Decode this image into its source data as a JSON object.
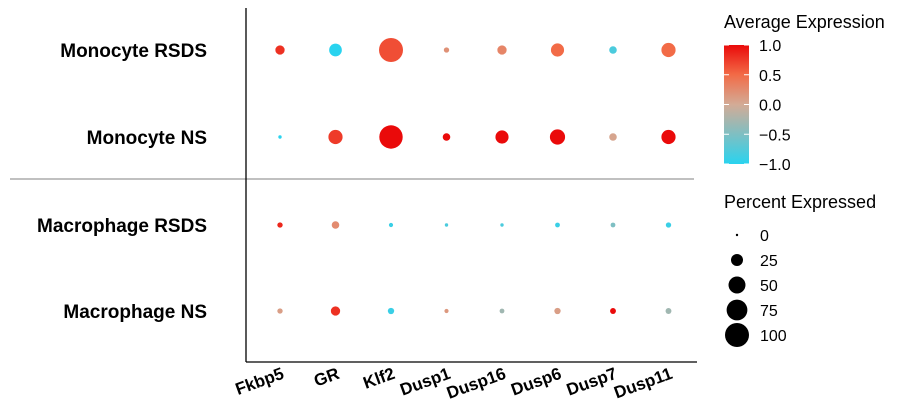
{
  "chart_data": {
    "type": "dotplot",
    "rows": [
      "Monocyte RSDS",
      "Monocyte NS",
      "Macrophage RSDS",
      "Macrophage NS"
    ],
    "columns": [
      "Fkbp5",
      "GR",
      "Klf2",
      "Dusp1",
      "Dusp16",
      "Dusp6",
      "Dusp7",
      "Dusp11"
    ],
    "average_expression": [
      [
        0.8,
        -1.0,
        0.65,
        0.2,
        0.3,
        0.5,
        -0.8,
        0.5
      ],
      [
        -1.0,
        0.75,
        1.0,
        1.0,
        1.0,
        1.0,
        0.05,
        1.0
      ],
      [
        0.85,
        0.25,
        -0.9,
        -0.8,
        -0.8,
        -0.9,
        -0.5,
        -0.9
      ],
      [
        0.1,
        0.8,
        -0.9,
        0.15,
        -0.3,
        0.1,
        1.0,
        -0.3
      ]
    ],
    "percent_expressed": [
      [
        15,
        28,
        100,
        5,
        15,
        30,
        10,
        35
      ],
      [
        2,
        35,
        95,
        10,
        30,
        40,
        10,
        35
      ],
      [
        5,
        10,
        3,
        2,
        2,
        4,
        4,
        5
      ],
      [
        5,
        15,
        7,
        3,
        4,
        7,
        6,
        6
      ]
    ],
    "color_legend": {
      "title": "Average Expression",
      "ticks": [
        "1.0",
        "0.5",
        "0.0",
        "−0.5",
        "−1.0"
      ],
      "tick_values": [
        1.0,
        0.5,
        0.0,
        -0.5,
        -1.0
      ],
      "range": [
        -1.0,
        1.0
      ],
      "colors": {
        "low": "#29d3ef",
        "mid": "#d3ab96",
        "mid_high": "#f26b47",
        "high": "#ea0a0a"
      }
    },
    "size_legend": {
      "title": "Percent Expressed",
      "values": [
        0,
        25,
        50,
        75,
        100
      ],
      "labels": [
        "0",
        "25",
        "50",
        "75",
        "100"
      ]
    },
    "group_separator_after_row": 2,
    "separator_color": "#9a9a9a"
  }
}
